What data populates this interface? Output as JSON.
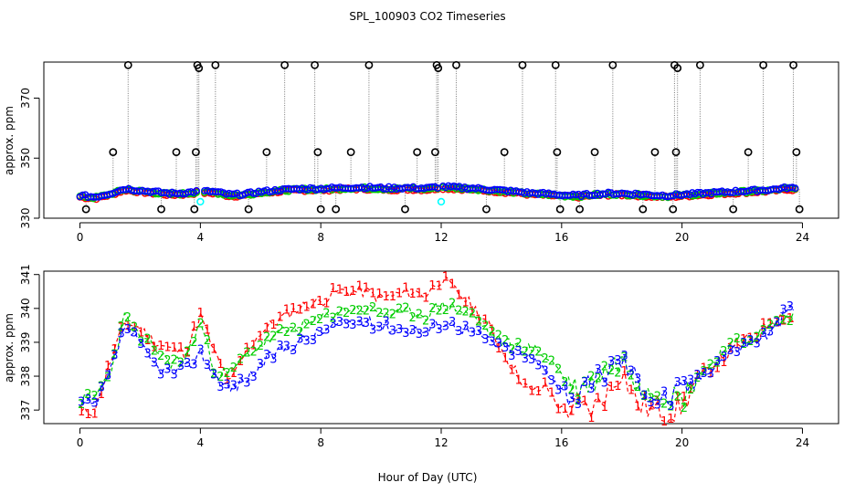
{
  "title": "SPL_100903  CO2 Timeseries",
  "xlabel": "Hour of Day (UTC)",
  "colors": {
    "series1": "#ff0000",
    "series2": "#00cd00",
    "series3": "#0000ff",
    "outlier": "#000000",
    "flag": "#00ffff"
  },
  "chart_data": [
    {
      "type": "scatter",
      "name": "top-panel",
      "ylabel": "approx. ppm",
      "xlim": [
        -1.2,
        25.2
      ],
      "ylim": [
        330,
        382
      ],
      "xticks": [
        "0",
        "4",
        "8",
        "12",
        "16",
        "20",
        "24"
      ],
      "yticks": [
        "330",
        "350",
        "370"
      ],
      "ytick_values": [
        330,
        350,
        370
      ],
      "baseline": {
        "x": [
          0,
          0.5,
          1,
          1.5,
          2,
          2.5,
          3,
          3.5,
          4,
          4.5,
          5,
          5.5,
          6,
          6.5,
          7,
          7.5,
          8,
          8.5,
          9,
          9.5,
          10,
          10.5,
          11,
          11.5,
          12,
          12.5,
          13,
          13.5,
          14,
          14.5,
          15,
          15.5,
          16,
          16.5,
          17,
          17.5,
          18,
          18.5,
          19,
          19.5,
          20,
          20.5,
          21,
          21.5,
          22,
          22.5,
          23,
          23.5,
          23.8
        ],
        "y": [
          337.3,
          336.8,
          338,
          339.6,
          339,
          338.5,
          338,
          338.2,
          338.8,
          338.5,
          337.6,
          337.8,
          338.6,
          339,
          339.4,
          339.6,
          339.6,
          339.8,
          340,
          340,
          339.8,
          339.8,
          339.9,
          339.7,
          340.3,
          340,
          339.8,
          339.4,
          339,
          338.6,
          338.1,
          337.9,
          337.5,
          337.3,
          337.7,
          338,
          338,
          337.8,
          337.5,
          337.3,
          337.6,
          337.9,
          338.2,
          338.5,
          338.8,
          339,
          339.3,
          339.9,
          339.6
        ]
      },
      "outliers": [
        {
          "x": 0.2,
          "y": 333
        },
        {
          "x": 1.1,
          "y": 352
        },
        {
          "x": 1.6,
          "y": 381
        },
        {
          "x": 2.7,
          "y": 333
        },
        {
          "x": 3.2,
          "y": 352
        },
        {
          "x": 3.8,
          "y": 333
        },
        {
          "x": 3.85,
          "y": 352
        },
        {
          "x": 3.9,
          "y": 381
        },
        {
          "x": 3.95,
          "y": 380
        },
        {
          "x": 4.5,
          "y": 381
        },
        {
          "x": 5.6,
          "y": 333
        },
        {
          "x": 6.2,
          "y": 352
        },
        {
          "x": 6.8,
          "y": 381
        },
        {
          "x": 7.8,
          "y": 381
        },
        {
          "x": 7.9,
          "y": 352
        },
        {
          "x": 8.0,
          "y": 333
        },
        {
          "x": 8.5,
          "y": 333
        },
        {
          "x": 9.0,
          "y": 352
        },
        {
          "x": 9.6,
          "y": 381
        },
        {
          "x": 10.8,
          "y": 333
        },
        {
          "x": 11.2,
          "y": 352
        },
        {
          "x": 11.8,
          "y": 352
        },
        {
          "x": 11.85,
          "y": 381
        },
        {
          "x": 11.9,
          "y": 380
        },
        {
          "x": 12.5,
          "y": 381
        },
        {
          "x": 13.5,
          "y": 333
        },
        {
          "x": 14.1,
          "y": 352
        },
        {
          "x": 14.7,
          "y": 381
        },
        {
          "x": 15.8,
          "y": 381
        },
        {
          "x": 15.85,
          "y": 352
        },
        {
          "x": 15.95,
          "y": 333
        },
        {
          "x": 16.6,
          "y": 333
        },
        {
          "x": 17.1,
          "y": 352
        },
        {
          "x": 17.7,
          "y": 381
        },
        {
          "x": 18.7,
          "y": 333
        },
        {
          "x": 19.1,
          "y": 352
        },
        {
          "x": 19.7,
          "y": 333
        },
        {
          "x": 19.75,
          "y": 381
        },
        {
          "x": 19.8,
          "y": 352
        },
        {
          "x": 19.85,
          "y": 380
        },
        {
          "x": 20.6,
          "y": 381
        },
        {
          "x": 21.7,
          "y": 333
        },
        {
          "x": 22.2,
          "y": 352
        },
        {
          "x": 22.7,
          "y": 381
        },
        {
          "x": 23.7,
          "y": 381
        },
        {
          "x": 23.8,
          "y": 352
        },
        {
          "x": 23.9,
          "y": 333
        }
      ],
      "flags": [
        {
          "x": 4.0,
          "y": 335.5
        },
        {
          "x": 12.0,
          "y": 335.5
        }
      ]
    },
    {
      "type": "line",
      "name": "bottom-panel",
      "ylabel": "approx. ppm",
      "xlim": [
        -1.2,
        25.2
      ],
      "ylim": [
        336.6,
        341.1
      ],
      "xticks": [
        "0",
        "4",
        "8",
        "12",
        "16",
        "20",
        "24"
      ],
      "yticks": [
        "337",
        "338",
        "339",
        "340",
        "341"
      ],
      "ytick_values": [
        337,
        338,
        339,
        340,
        341
      ],
      "series": [
        {
          "name": "1",
          "symbol": "1",
          "x": [
            0,
            0.5,
            1,
            1.5,
            2,
            2.5,
            3,
            3.5,
            4,
            4.5,
            5,
            5.5,
            6,
            6.5,
            7,
            7.5,
            8,
            8.5,
            9,
            9.5,
            10,
            10.5,
            11,
            11.5,
            12,
            12.5,
            13,
            13.5,
            14,
            14.5,
            15,
            15.5,
            16,
            16.5,
            17,
            17.5,
            18,
            18.5,
            19,
            19.5,
            20,
            20.5,
            21,
            21.5,
            22,
            22.5,
            23,
            23.5,
            23.8
          ],
          "values": [
            336.9,
            337,
            338.4,
            339.6,
            339.4,
            339,
            338.8,
            338.7,
            339.8,
            338.6,
            337.8,
            338.7,
            339.3,
            339.6,
            339.9,
            340.1,
            340.2,
            340.5,
            340.5,
            340.5,
            340.3,
            340.4,
            340.5,
            340.4,
            340.9,
            340.5,
            340.1,
            339.6,
            338.8,
            338.1,
            337.5,
            337.7,
            337,
            337.1,
            337,
            337.5,
            338.2,
            337.2,
            337,
            336.9,
            337.1,
            337.9,
            338.3,
            338.6,
            339,
            339.2,
            339.7,
            339.8,
            339.5
          ]
        },
        {
          "name": "2",
          "symbol": "2",
          "x": [
            0,
            0.5,
            1,
            1.5,
            2,
            2.5,
            3,
            3.5,
            4,
            4.5,
            5,
            5.5,
            6,
            6.5,
            7,
            7.5,
            8,
            8.5,
            9,
            9.5,
            10,
            10.5,
            11,
            11.5,
            12,
            12.5,
            13,
            13.5,
            14,
            14.5,
            15,
            15.5,
            16,
            16.5,
            17,
            17.5,
            18,
            18.5,
            19,
            19.5,
            20,
            20.5,
            21,
            21.5,
            22,
            22.5,
            23,
            23.5,
            23.8
          ],
          "values": [
            337.3,
            337.4,
            338.1,
            339.8,
            339.1,
            338.8,
            338.4,
            338.5,
            339.6,
            338.1,
            338.1,
            338.6,
            338.9,
            339.2,
            339.4,
            339.5,
            339.7,
            339.9,
            340,
            340,
            339.9,
            339.8,
            339.9,
            339.8,
            340.1,
            340,
            339.8,
            339.4,
            339,
            338.9,
            338.8,
            338.6,
            338.1,
            337.6,
            337.8,
            338.2,
            338.5,
            337.9,
            337.6,
            337.5,
            337.3,
            338,
            338.4,
            338.9,
            339,
            339.2,
            339.5,
            339.7,
            339.8
          ]
        },
        {
          "name": "3",
          "symbol": "3",
          "x": [
            0,
            0.5,
            1,
            1.5,
            2,
            2.5,
            3,
            3.5,
            4,
            4.5,
            5,
            5.5,
            6,
            6.5,
            7,
            7.5,
            8,
            8.5,
            9,
            9.5,
            10,
            10.5,
            11,
            11.5,
            12,
            12.5,
            13,
            13.5,
            14,
            14.5,
            15,
            15.5,
            16,
            16.5,
            17,
            17.5,
            18,
            18.5,
            19,
            19.5,
            20,
            20.5,
            21,
            21.5,
            22,
            22.5,
            23,
            23.5,
            23.8
          ],
          "values": [
            337.2,
            337.1,
            338.1,
            339.5,
            338.9,
            338.3,
            338.1,
            338.2,
            338.7,
            338,
            337.6,
            337.9,
            338.3,
            338.7,
            338.9,
            339.1,
            339.3,
            339.5,
            339.6,
            339.6,
            339.5,
            339.4,
            339.4,
            339.3,
            339.6,
            339.5,
            339.3,
            339.1,
            338.9,
            338.7,
            338.5,
            338.2,
            337.6,
            337.4,
            337.7,
            338.2,
            338.5,
            337.9,
            337.4,
            337.3,
            337.6,
            337.9,
            338.3,
            338.7,
            338.9,
            339.1,
            339.3,
            340,
            339.8
          ]
        }
      ]
    }
  ]
}
